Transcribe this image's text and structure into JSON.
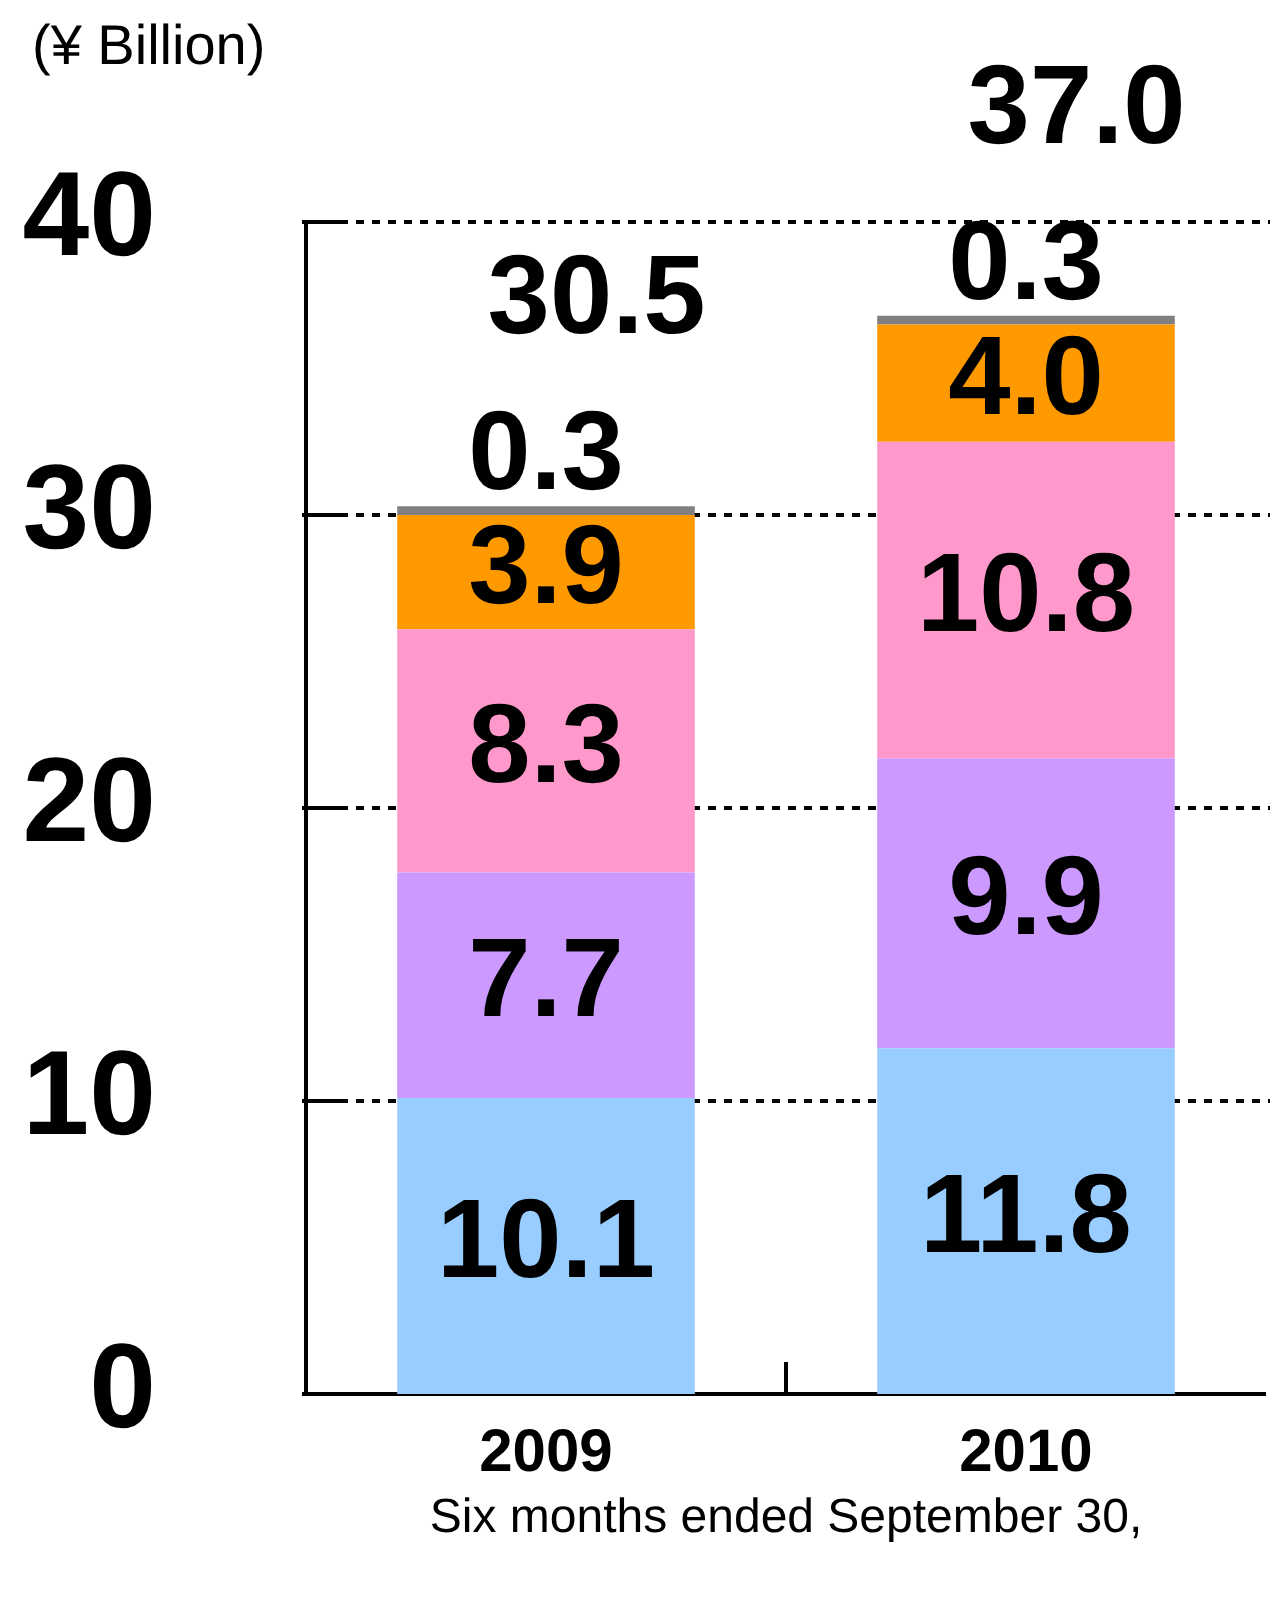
{
  "chart_data": {
    "type": "bar",
    "ylabel": "(¥ Billion)",
    "xlabel": "Six months ended September 30,",
    "categories": [
      "2009",
      "2010"
    ],
    "series": [
      {
        "color": "#99ccff",
        "values": [
          10.1,
          11.8
        ],
        "value_labels": [
          "10.1",
          "11.8"
        ]
      },
      {
        "color": "#cc99ff",
        "values": [
          7.7,
          9.9
        ],
        "value_labels": [
          "7.7",
          "9.9"
        ]
      },
      {
        "color": "#ff99cc",
        "values": [
          8.3,
          10.8
        ],
        "value_labels": [
          "8.3",
          "10.8"
        ]
      },
      {
        "color": "#ff9900",
        "values": [
          3.9,
          4.0
        ],
        "value_labels": [
          "3.9",
          "4.0"
        ]
      },
      {
        "color": "#808080",
        "values": [
          0.3,
          0.3
        ],
        "value_labels": [
          "0.3",
          "0.3"
        ]
      }
    ],
    "totals": [
      "30.5",
      "37.0"
    ],
    "stacked": true,
    "ylim": [
      0,
      40
    ],
    "yticks": [
      0,
      10,
      20,
      30,
      40
    ],
    "grid": "y",
    "legend": false
  }
}
